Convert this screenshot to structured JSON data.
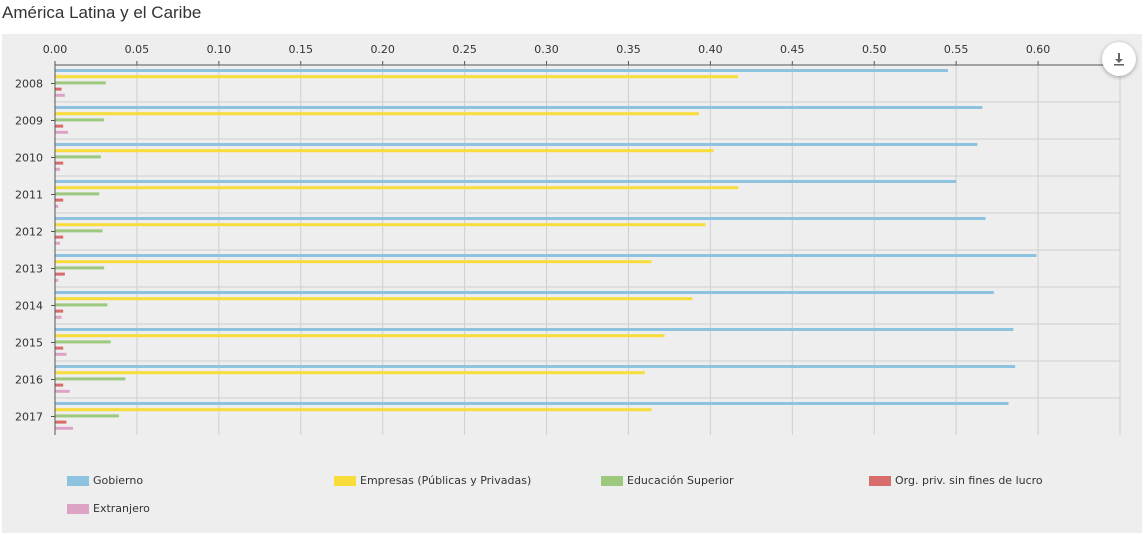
{
  "page": {
    "title": "América Latina y el Caribe"
  },
  "colors": {
    "Gobierno": "#8ec3df",
    "Empresas": "#f7dc3a",
    "Educacion": "#9cc97e",
    "OrgPriv": "#d86b6b",
    "Extranjero": "#dca3c4",
    "grid": "#cfcfcf",
    "axis": "#555555"
  },
  "icons": {
    "download": "download-icon"
  },
  "chart_data": {
    "type": "bar",
    "orientation": "horizontal",
    "grid": true,
    "legend_position": "bottom",
    "title": "",
    "xlabel": "",
    "ylabel": "",
    "xlim": [
      0,
      0.65
    ],
    "x_ticks": [
      "0.00",
      "0.05",
      "0.10",
      "0.15",
      "0.20",
      "0.25",
      "0.30",
      "0.35",
      "0.40",
      "0.45",
      "0.50",
      "0.55",
      "0.60"
    ],
    "tick_values": [
      0,
      0.05,
      0.1,
      0.15,
      0.2,
      0.25,
      0.3,
      0.35,
      0.4,
      0.45,
      0.5,
      0.55,
      0.6
    ],
    "categories": [
      "2008",
      "2009",
      "2010",
      "2011",
      "2012",
      "2013",
      "2014",
      "2015",
      "2016",
      "2017"
    ],
    "series": [
      {
        "name": "Gobierno",
        "color_key": "Gobierno",
        "values": [
          0.545,
          0.566,
          0.563,
          0.55,
          0.568,
          0.599,
          0.573,
          0.585,
          0.586,
          0.582
        ]
      },
      {
        "name": "Empresas (Públicas y Privadas)",
        "color_key": "Empresas",
        "values": [
          0.417,
          0.393,
          0.402,
          0.417,
          0.397,
          0.364,
          0.389,
          0.372,
          0.36,
          0.364
        ]
      },
      {
        "name": "Educación Superior",
        "color_key": "Educacion",
        "values": [
          0.031,
          0.03,
          0.028,
          0.027,
          0.029,
          0.03,
          0.032,
          0.034,
          0.043,
          0.039
        ]
      },
      {
        "name": "Org. priv. sin fines de lucro",
        "color_key": "OrgPriv",
        "values": [
          0.004,
          0.005,
          0.005,
          0.005,
          0.005,
          0.006,
          0.005,
          0.005,
          0.005,
          0.007
        ]
      },
      {
        "name": "Extranjero",
        "color_key": "Extranjero",
        "values": [
          0.006,
          0.008,
          0.003,
          0.002,
          0.003,
          0.002,
          0.004,
          0.007,
          0.009,
          0.011
        ]
      }
    ]
  }
}
